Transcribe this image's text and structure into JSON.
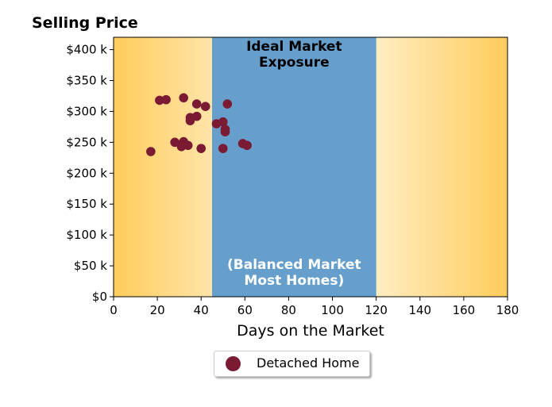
{
  "chart_data": {
    "type": "scatter",
    "title": "Selling Price",
    "xlabel": "Days on the Market",
    "ylabel": "",
    "xlim": [
      0,
      180
    ],
    "ylim": [
      0,
      420000
    ],
    "x_ticks": [
      0,
      20,
      40,
      60,
      80,
      100,
      120,
      140,
      160,
      180
    ],
    "y_ticks": [
      0,
      50000,
      100000,
      150000,
      200000,
      250000,
      300000,
      350000,
      400000
    ],
    "y_tick_labels": [
      "$0",
      "$50 k",
      "$100 k",
      "$150 k",
      "$200 k",
      "$250 k",
      "$300 k",
      "$350 k",
      "$400 k"
    ],
    "grid": false,
    "legend_placement": "bottom-center",
    "region": {
      "x_start": 45,
      "x_end": 120,
      "color": "#679fcc",
      "top_label": "Ideal Market\nExposure",
      "bottom_label": "(Balanced Market\nMost Homes)"
    },
    "background_gradient": {
      "edge_color": "#ffcc5c",
      "center_color": "#fffdf5"
    },
    "series": [
      {
        "name": "Detached Home",
        "color": "#7a1a33",
        "points": [
          [
            17,
            235000
          ],
          [
            21,
            318000
          ],
          [
            24,
            319000
          ],
          [
            28,
            250000
          ],
          [
            31,
            243000
          ],
          [
            32,
            251000
          ],
          [
            32,
            322000
          ],
          [
            34,
            245000
          ],
          [
            35,
            285000
          ],
          [
            35,
            290000
          ],
          [
            38,
            292000
          ],
          [
            38,
            312000
          ],
          [
            40,
            240000
          ],
          [
            42,
            308000
          ],
          [
            47,
            280000
          ],
          [
            50,
            283000
          ],
          [
            50,
            240000
          ],
          [
            51,
            271000
          ],
          [
            51,
            267000
          ],
          [
            52,
            312000
          ],
          [
            59,
            248000
          ],
          [
            61,
            245000
          ]
        ]
      }
    ]
  }
}
